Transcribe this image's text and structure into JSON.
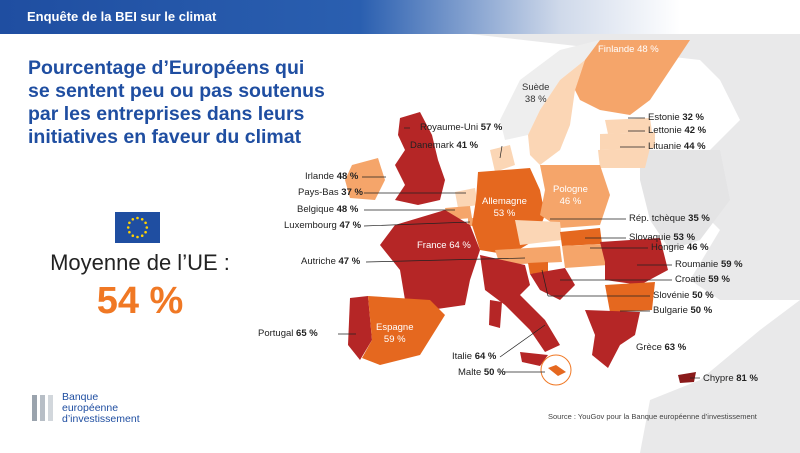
{
  "header": {
    "title": "Enquête de la BEI sur le climat"
  },
  "main_title": "Pourcentage d’Européens qui se sentent peu ou pas soutenus par les entreprises dans leurs initiatives en faveur du climat",
  "average": {
    "label": "Moyenne de l’UE :",
    "value": "54 %"
  },
  "logo": {
    "line1": "Banque",
    "line2": "européenne",
    "line3": "d’investissement"
  },
  "source": "Source : YouGov pour la Banque européenne d’investissement",
  "colors": {
    "brand_blue": "#1f4ea1",
    "accent_orange": "#f07824",
    "high": "#b52626",
    "mid": "#e5681f",
    "low": "#f5a56a",
    "lowest": "#fbd6b5"
  },
  "countries": {
    "finlande": {
      "name": "Finlande",
      "value": "48 %"
    },
    "suede": {
      "name": "Suède",
      "value": "38 %"
    },
    "estonie": {
      "name": "Estonie",
      "value": "32 %"
    },
    "lettonie": {
      "name": "Lettonie",
      "value": "42 %"
    },
    "lituanie": {
      "name": "Lituanie",
      "value": "44 %"
    },
    "royaume": {
      "name": "Royaume-Uni",
      "value": "57 %"
    },
    "danemark": {
      "name": "Danemark",
      "value": "41 %"
    },
    "irlande": {
      "name": "Irlande",
      "value": "48 %"
    },
    "paysbas": {
      "name": "Pays-Bas",
      "value": "37 %"
    },
    "belgique": {
      "name": "Belgique",
      "value": "48 %"
    },
    "luxembourg": {
      "name": "Luxembourg",
      "value": "47 %"
    },
    "allemagne": {
      "name": "Allemagne",
      "value": "53 %"
    },
    "pologne": {
      "name": "Pologne",
      "value": "46 %"
    },
    "tcheque": {
      "name": "Rép. tchèque",
      "value": "35 %"
    },
    "slovaquie": {
      "name": "Slovaquie",
      "value": "53 %"
    },
    "hongrie": {
      "name": "Hongrie",
      "value": "46 %"
    },
    "autriche": {
      "name": "Autriche",
      "value": "47 %"
    },
    "france": {
      "name": "France",
      "value": "64 %"
    },
    "roumanie": {
      "name": "Roumanie",
      "value": "59 %"
    },
    "croatie": {
      "name": "Croatie",
      "value": "59 %"
    },
    "slovenie": {
      "name": "Slovénie",
      "value": "50 %"
    },
    "bulgarie": {
      "name": "Bulgarie",
      "value": "50 %"
    },
    "portugal": {
      "name": "Portugal",
      "value": "65 %"
    },
    "espagne": {
      "name": "Espagne",
      "value": "59 %"
    },
    "italie": {
      "name": "Italie",
      "value": "64 %"
    },
    "grece": {
      "name": "Grèce",
      "value": "63 %"
    },
    "malte": {
      "name": "Malte",
      "value": "50 %"
    },
    "chypre": {
      "name": "Chypre",
      "value": "81 %"
    }
  }
}
